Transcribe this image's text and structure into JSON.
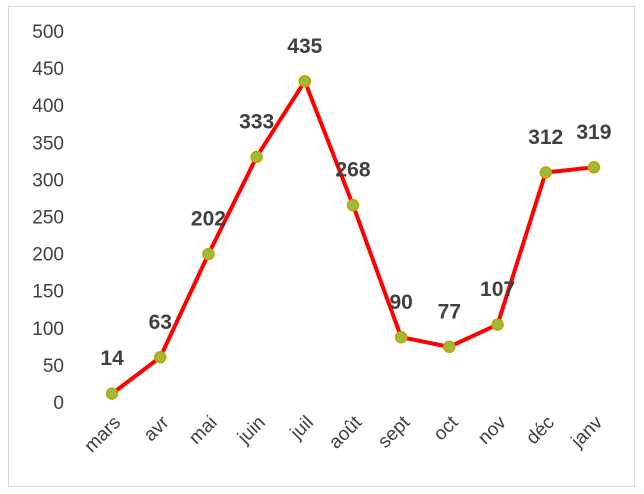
{
  "chart_data": {
    "type": "line",
    "categories": [
      "mars",
      "avr",
      "mai",
      "juin",
      "juil",
      "août",
      "sept",
      "oct",
      "nov",
      "déc",
      "janv"
    ],
    "values": [
      14,
      63,
      202,
      333,
      435,
      268,
      90,
      77,
      107,
      312,
      319
    ],
    "color": "#ff0000",
    "marker_color": "#9bbb3b",
    "marker_edge_color": "#c8a000",
    "ylim": [
      0,
      500
    ],
    "yticks": [
      0,
      50,
      100,
      150,
      200,
      250,
      300,
      350,
      400,
      450,
      500
    ],
    "grid": false
  }
}
